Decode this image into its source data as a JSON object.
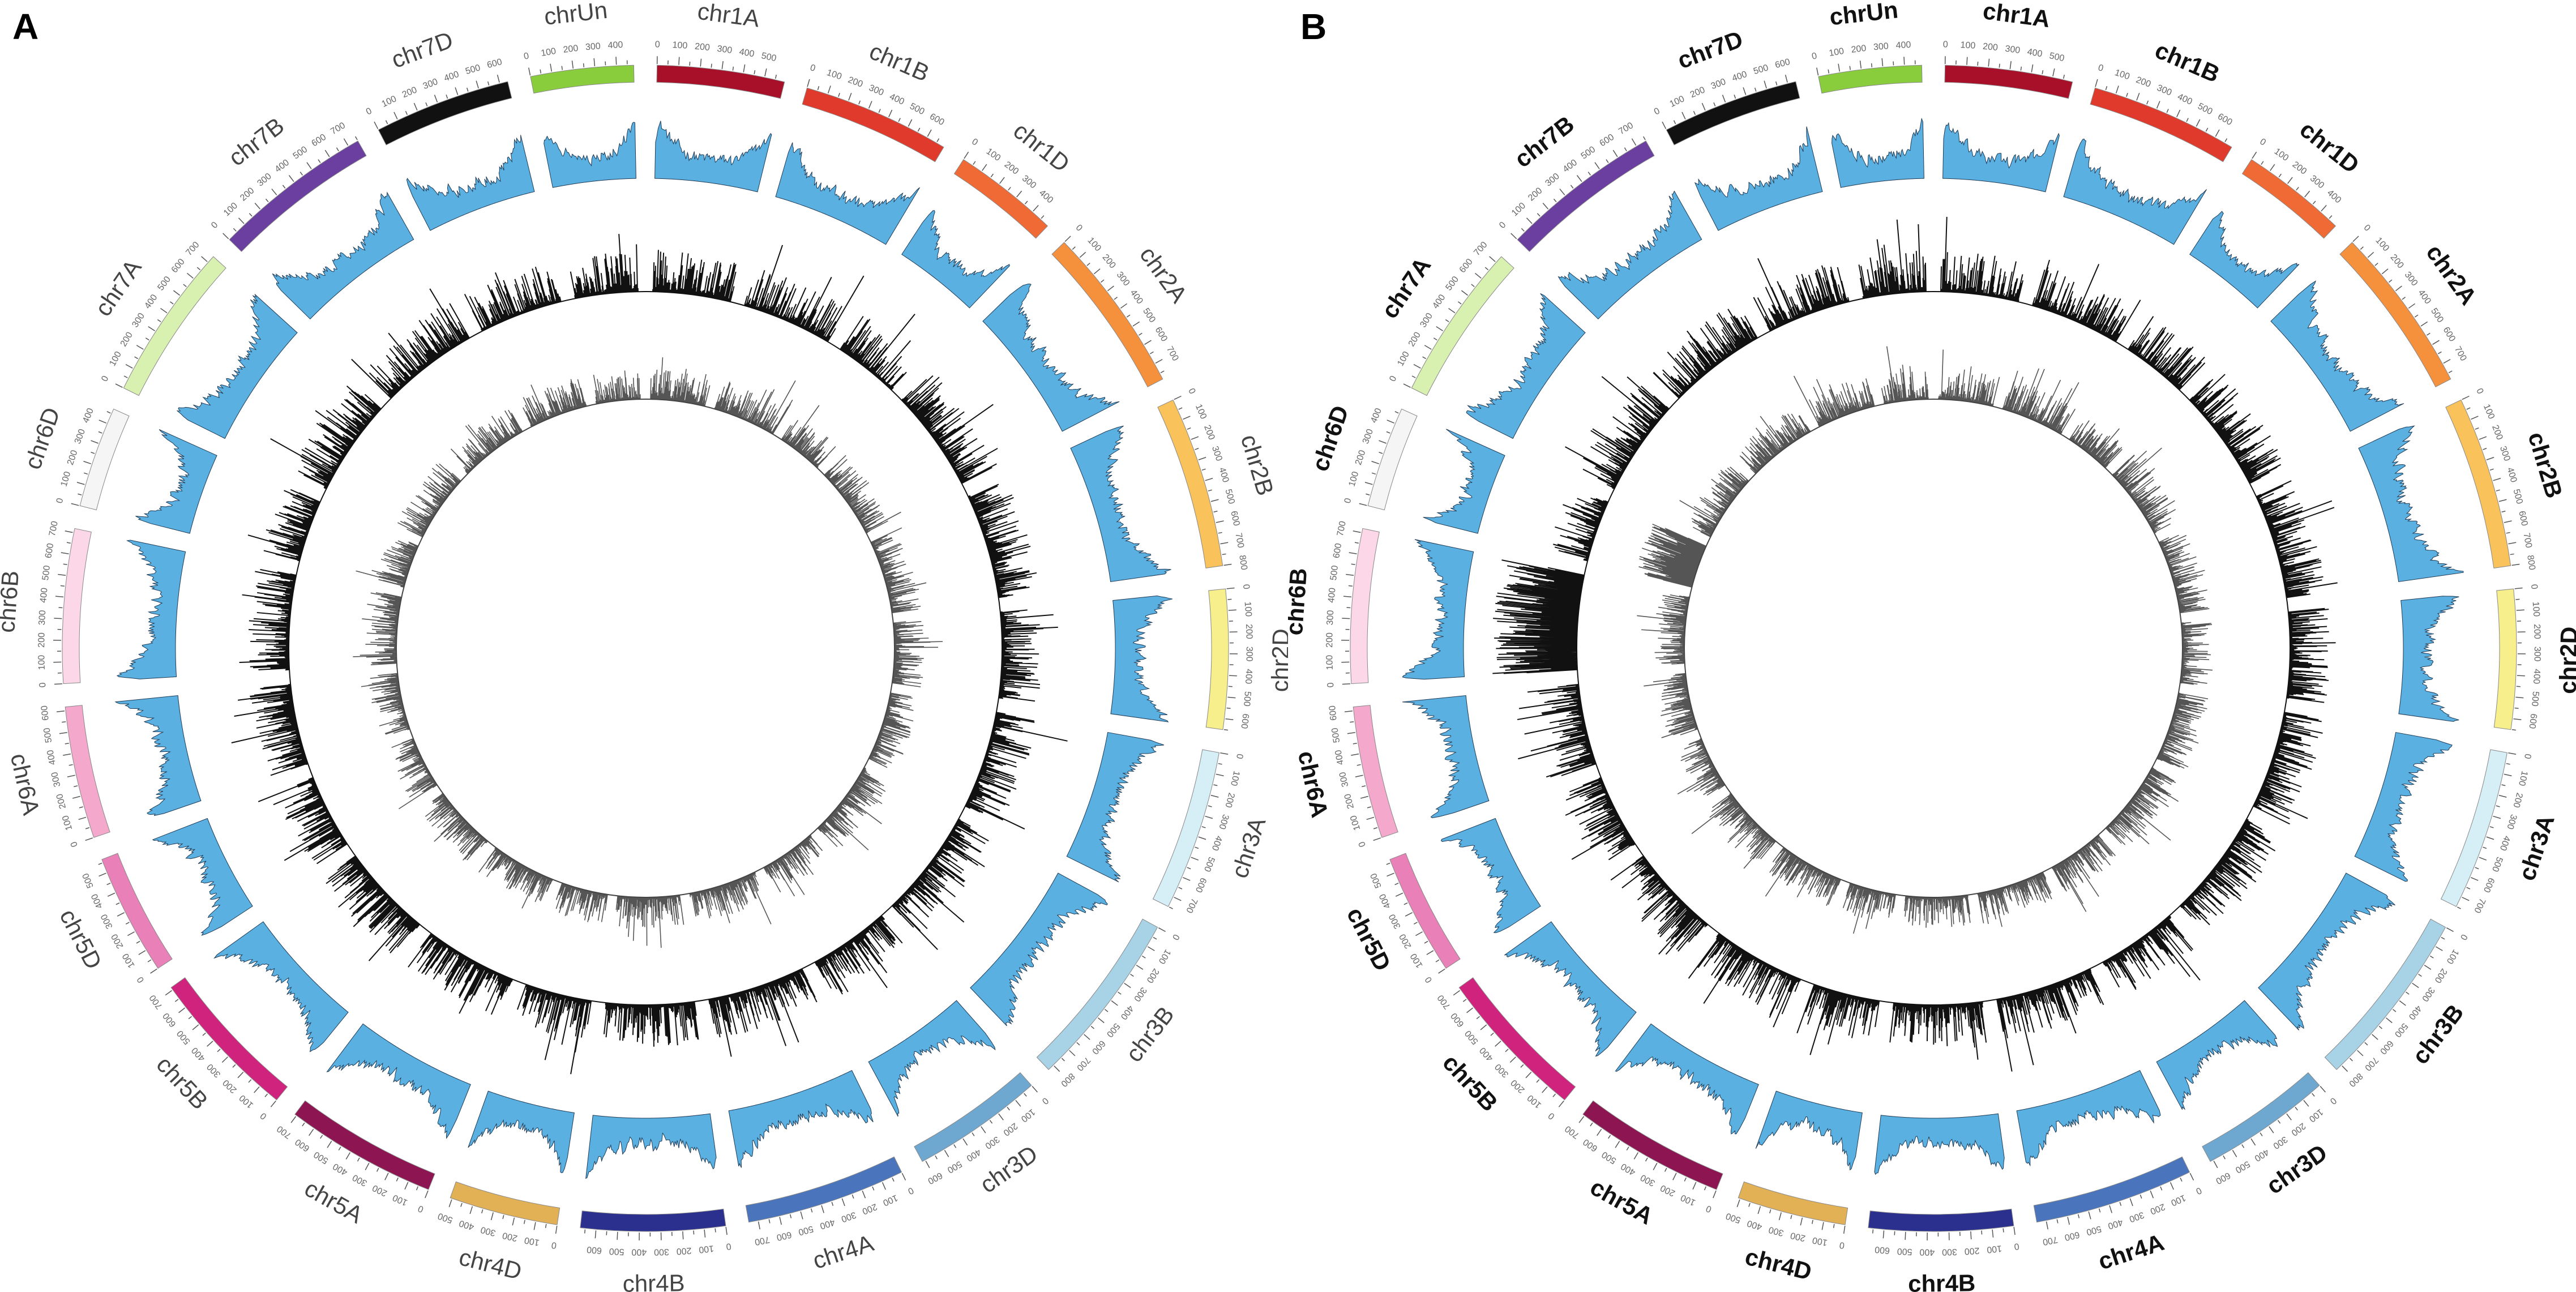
{
  "figure": {
    "panels": [
      {
        "letter": "A",
        "label_style": "plain"
      },
      {
        "letter": "B",
        "label_style": "bold"
      }
    ]
  },
  "chart_data": [
    {
      "type": "circos",
      "panel": "A",
      "title": "",
      "tracks": [
        "chromosome ideogram with Mb scale",
        "density histogram (blue area)",
        "density histogram (black bars)",
        "density histogram (grey bars)"
      ],
      "track_colors": {
        "ring1": "#5ab0e0",
        "ring2": "#111111",
        "ring3": "#555555"
      },
      "chromosomes": [
        {
          "name": "chr1A",
          "length": 594,
          "color": "#a8102a"
        },
        {
          "name": "chr1B",
          "length": 689,
          "color": "#e03a2c"
        },
        {
          "name": "chr1D",
          "length": 495,
          "color": "#ef6a34"
        },
        {
          "name": "chr2A",
          "length": 780,
          "color": "#f5913d"
        },
        {
          "name": "chr2B",
          "length": 801,
          "color": "#f9c25a"
        },
        {
          "name": "chr2D",
          "length": 651,
          "color": "#f6ef8c"
        },
        {
          "name": "chr3A",
          "length": 750,
          "color": "#d6eef6"
        },
        {
          "name": "chr3B",
          "length": 830,
          "color": "#a8d3e6"
        },
        {
          "name": "chr3D",
          "length": 615,
          "color": "#6ea8d0"
        },
        {
          "name": "chr4A",
          "length": 744,
          "color": "#4a74bc"
        },
        {
          "name": "chr4B",
          "length": 673,
          "color": "#2b308f"
        },
        {
          "name": "chr4D",
          "length": 509,
          "color": "#e2b155"
        },
        {
          "name": "chr5A",
          "length": 709,
          "color": "#8c1552"
        },
        {
          "name": "chr5B",
          "length": 713,
          "color": "#d0237d"
        },
        {
          "name": "chr5D",
          "length": 566,
          "color": "#e981b8"
        },
        {
          "name": "chr6A",
          "length": 618,
          "color": "#f3a8cc"
        },
        {
          "name": "chr6B",
          "length": 720,
          "color": "#fbd7e8"
        },
        {
          "name": "chr6D",
          "length": 473,
          "color": "#f5f5f5"
        },
        {
          "name": "chr7A",
          "length": 736,
          "color": "#d8f0b0"
        },
        {
          "name": "chr7B",
          "length": 750,
          "color": "#6a3fa0"
        },
        {
          "name": "chr7D",
          "length": 638,
          "color": "#111111"
        },
        {
          "name": "chrUn",
          "length": 480,
          "color": "#8acd3c"
        }
      ],
      "tick_step_mb": 100
    },
    {
      "type": "circos",
      "panel": "B",
      "title": "",
      "tracks": [
        "chromosome ideogram with Mb scale",
        "density histogram (blue area)",
        "density histogram (black bars)",
        "density histogram (grey bars)"
      ],
      "track_colors": {
        "ring1": "#5ab0e0",
        "ring2": "#111111",
        "ring3": "#555555"
      },
      "chromosomes": [
        {
          "name": "chr1A",
          "length": 594,
          "color": "#a8102a"
        },
        {
          "name": "chr1B",
          "length": 689,
          "color": "#e03a2c"
        },
        {
          "name": "chr1D",
          "length": 495,
          "color": "#ef6a34"
        },
        {
          "name": "chr2A",
          "length": 780,
          "color": "#f5913d"
        },
        {
          "name": "chr2B",
          "length": 801,
          "color": "#f9c25a"
        },
        {
          "name": "chr2D",
          "length": 651,
          "color": "#f6ef8c"
        },
        {
          "name": "chr3A",
          "length": 750,
          "color": "#d6eef6"
        },
        {
          "name": "chr3B",
          "length": 830,
          "color": "#a8d3e6"
        },
        {
          "name": "chr3D",
          "length": 615,
          "color": "#6ea8d0"
        },
        {
          "name": "chr4A",
          "length": 744,
          "color": "#4a74bc"
        },
        {
          "name": "chr4B",
          "length": 673,
          "color": "#2b308f"
        },
        {
          "name": "chr4D",
          "length": 509,
          "color": "#e2b155"
        },
        {
          "name": "chr5A",
          "length": 709,
          "color": "#8c1552"
        },
        {
          "name": "chr5B",
          "length": 713,
          "color": "#d0237d"
        },
        {
          "name": "chr5D",
          "length": 566,
          "color": "#e981b8"
        },
        {
          "name": "chr6A",
          "length": 618,
          "color": "#f3a8cc"
        },
        {
          "name": "chr6B",
          "length": 720,
          "color": "#fbd7e8"
        },
        {
          "name": "chr6D",
          "length": 473,
          "color": "#f5f5f5"
        },
        {
          "name": "chr7A",
          "length": 736,
          "color": "#d8f0b0"
        },
        {
          "name": "chr7B",
          "length": 750,
          "color": "#6a3fa0"
        },
        {
          "name": "chr7D",
          "length": 638,
          "color": "#111111"
        },
        {
          "name": "chrUn",
          "length": 480,
          "color": "#8acd3c"
        }
      ],
      "tick_step_mb": 100,
      "hotspots": [
        {
          "chromosome": "chr6B",
          "track": "ring2",
          "note": "dense high peaks"
        },
        {
          "chromosome": "chr6D",
          "track": "ring3",
          "note": "dense high peaks"
        }
      ]
    }
  ]
}
